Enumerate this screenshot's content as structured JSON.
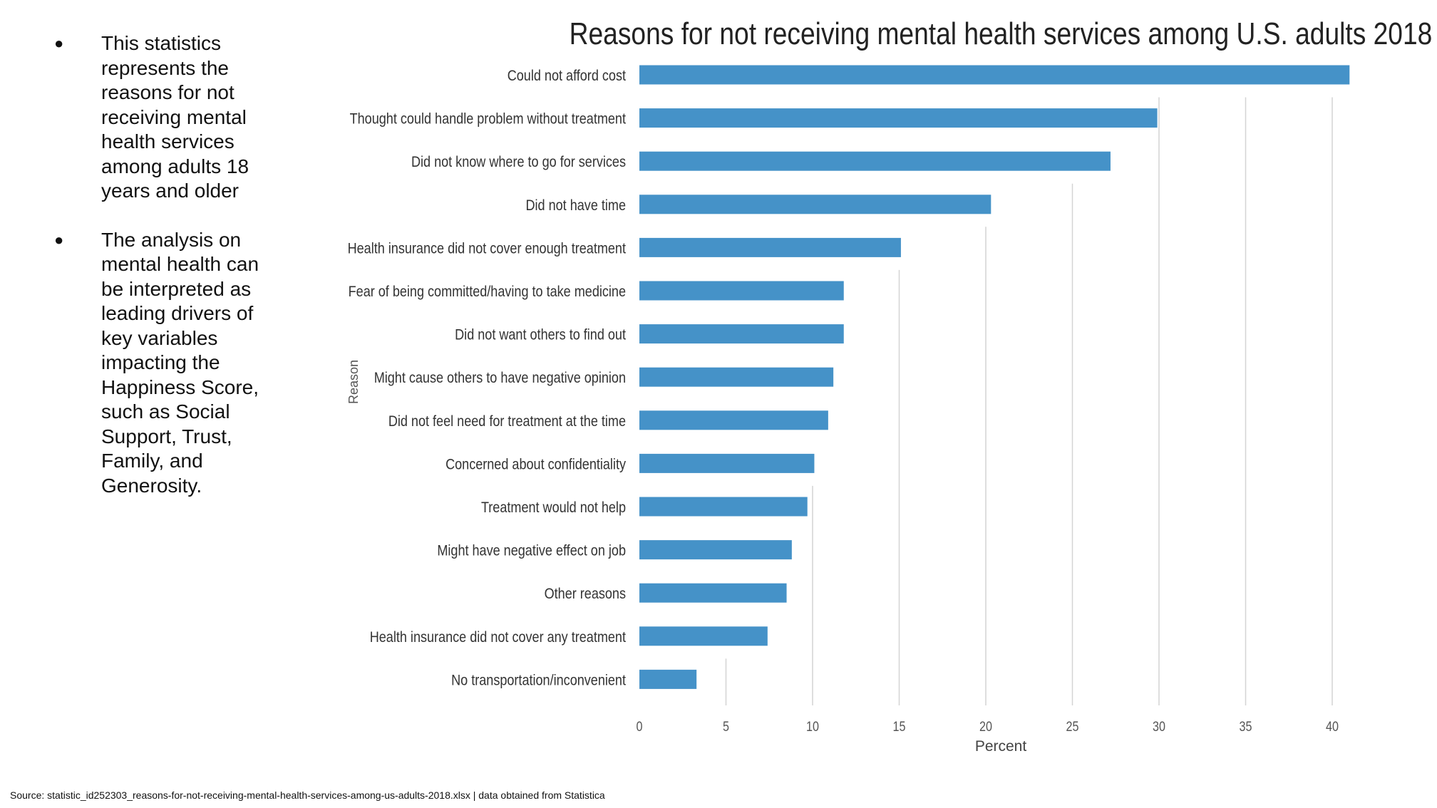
{
  "notes": {
    "bullets": [
      "This statistics represents the reasons for not receiving mental health services among adults 18 years and older",
      "The analysis on mental health can be interpreted as leading drivers of key variables impacting the Happiness Score, such as Social Support, Trust, Family, and Generosity."
    ],
    "bullet_glyph": "●"
  },
  "source": "Source: statistic_id252303_reasons-for-not-receiving-mental-health-services-among-us-adults-2018.xlsx | data obtained from Statistica",
  "chart_data": {
    "type": "bar",
    "orientation": "horizontal",
    "title": "Reasons for not receiving mental health services among U.S. adults 2018",
    "xlabel": "Percent",
    "ylabel": "Reason",
    "xlim": [
      0,
      43
    ],
    "x_ticks": [
      0,
      5,
      10,
      15,
      20,
      25,
      30,
      35,
      40
    ],
    "grid": "vertical",
    "bar_color": "#4592C8",
    "grid_color": "#d4d4d4",
    "categories": [
      "Could not afford cost",
      "Thought could handle problem without treatment",
      "Did not know where to go for services",
      "Did not have time",
      "Health insurance did not cover enough treatment",
      "Fear of being committed/having to take medicine",
      "Did not want others to find out",
      "Might cause others to have negative opinion",
      "Did not feel need for treatment at the time",
      "Concerned about confidentiality",
      "Treatment would not help",
      "Might have negative effect on job",
      "Other reasons",
      "Health insurance did not cover any treatment",
      "No transportation/inconvenient"
    ],
    "values": [
      41.0,
      29.9,
      27.2,
      20.3,
      15.1,
      11.8,
      11.8,
      11.2,
      10.9,
      10.1,
      9.7,
      8.8,
      8.5,
      7.4,
      3.3
    ]
  }
}
